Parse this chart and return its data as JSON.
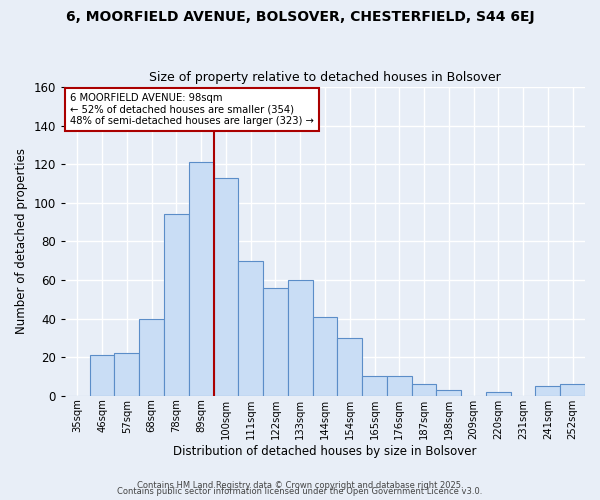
{
  "title": "6, MOORFIELD AVENUE, BOLSOVER, CHESTERFIELD, S44 6EJ",
  "subtitle": "Size of property relative to detached houses in Bolsover",
  "xlabel": "Distribution of detached houses by size in Bolsover",
  "ylabel": "Number of detached properties",
  "categories": [
    "35sqm",
    "46sqm",
    "57sqm",
    "68sqm",
    "78sqm",
    "89sqm",
    "100sqm",
    "111sqm",
    "122sqm",
    "133sqm",
    "144sqm",
    "154sqm",
    "165sqm",
    "176sqm",
    "187sqm",
    "198sqm",
    "209sqm",
    "220sqm",
    "231sqm",
    "241sqm",
    "252sqm"
  ],
  "values": [
    0,
    21,
    22,
    40,
    94,
    121,
    113,
    70,
    56,
    60,
    41,
    30,
    10,
    10,
    6,
    3,
    0,
    2,
    0,
    5,
    6
  ],
  "bar_color": "#c9ddf5",
  "bar_edge_color": "#5b8dc8",
  "vline_x": 5.5,
  "vline_color": "#aa0000",
  "ylim": [
    0,
    160
  ],
  "annotation_title": "6 MOORFIELD AVENUE: 98sqm",
  "annotation_line1": "← 52% of detached houses are smaller (354)",
  "annotation_line2": "48% of semi-detached houses are larger (323) →",
  "annotation_box_color": "#ffffff",
  "annotation_box_edge": "#aa0000",
  "footer1": "Contains HM Land Registry data © Crown copyright and database right 2025.",
  "footer2": "Contains public sector information licensed under the Open Government Licence v3.0.",
  "bg_color": "#e8eef7",
  "plot_bg_color": "#e8eef7",
  "grid_color": "#ffffff",
  "title_fontsize": 10,
  "subtitle_fontsize": 9
}
